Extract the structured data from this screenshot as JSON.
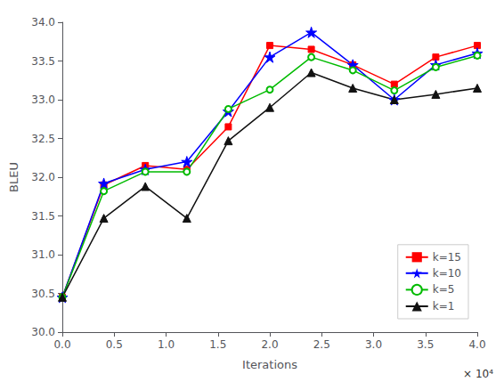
{
  "chart_data": {
    "type": "line",
    "x": [
      0,
      0.4,
      0.8,
      1.2,
      1.6,
      2.0,
      2.4,
      2.8,
      3.2,
      3.6,
      4.0
    ],
    "series": [
      {
        "name": "k=15",
        "color": "#ff0000",
        "marker": "square",
        "values": [
          30.45,
          31.9,
          32.15,
          32.1,
          32.65,
          33.7,
          33.65,
          33.45,
          33.2,
          33.55,
          33.7
        ]
      },
      {
        "name": "k=10",
        "color": "#0000ff",
        "marker": "star",
        "values": [
          30.45,
          31.92,
          32.1,
          32.2,
          32.85,
          33.55,
          33.87,
          33.45,
          33.0,
          33.45,
          33.6
        ]
      },
      {
        "name": "k=5",
        "color": "#00bb00",
        "marker": "open_circle",
        "values": [
          30.45,
          31.82,
          32.07,
          32.07,
          32.88,
          33.13,
          33.55,
          33.38,
          33.12,
          33.42,
          33.57
        ]
      },
      {
        "name": "k=1",
        "color": "#111111",
        "marker": "triangle",
        "values": [
          30.45,
          31.47,
          31.88,
          31.47,
          32.47,
          32.9,
          33.35,
          33.15,
          33.0,
          33.07,
          33.15
        ]
      }
    ],
    "xlabel": "Iterations",
    "ylabel": "BLEU",
    "xlim": [
      0.0,
      4.0
    ],
    "ylim": [
      30.0,
      34.0
    ],
    "xticks": [
      {
        "value": 0.0,
        "label": "0.0"
      },
      0.5,
      {
        "value": 1.0,
        "label": "1.0"
      },
      1.5,
      {
        "value": 2.0,
        "label": "2.0"
      },
      2.5,
      {
        "value": 3.0,
        "label": "3.0"
      },
      3.5,
      {
        "value": 4.0,
        "label": "4.0"
      }
    ],
    "yticks": [
      {
        "value": 30.0,
        "label": "30.0"
      },
      30.5,
      {
        "value": 31.0,
        "label": "31.0"
      },
      31.5,
      {
        "value": 32.0,
        "label": "32.0"
      },
      32.5,
      {
        "value": 33.0,
        "label": "33.0"
      },
      33.5,
      {
        "value": 34.0,
        "label": "34.0"
      }
    ],
    "annotations": [
      "× 10⁴"
    ],
    "legend": "lower right",
    "grid": false
  }
}
